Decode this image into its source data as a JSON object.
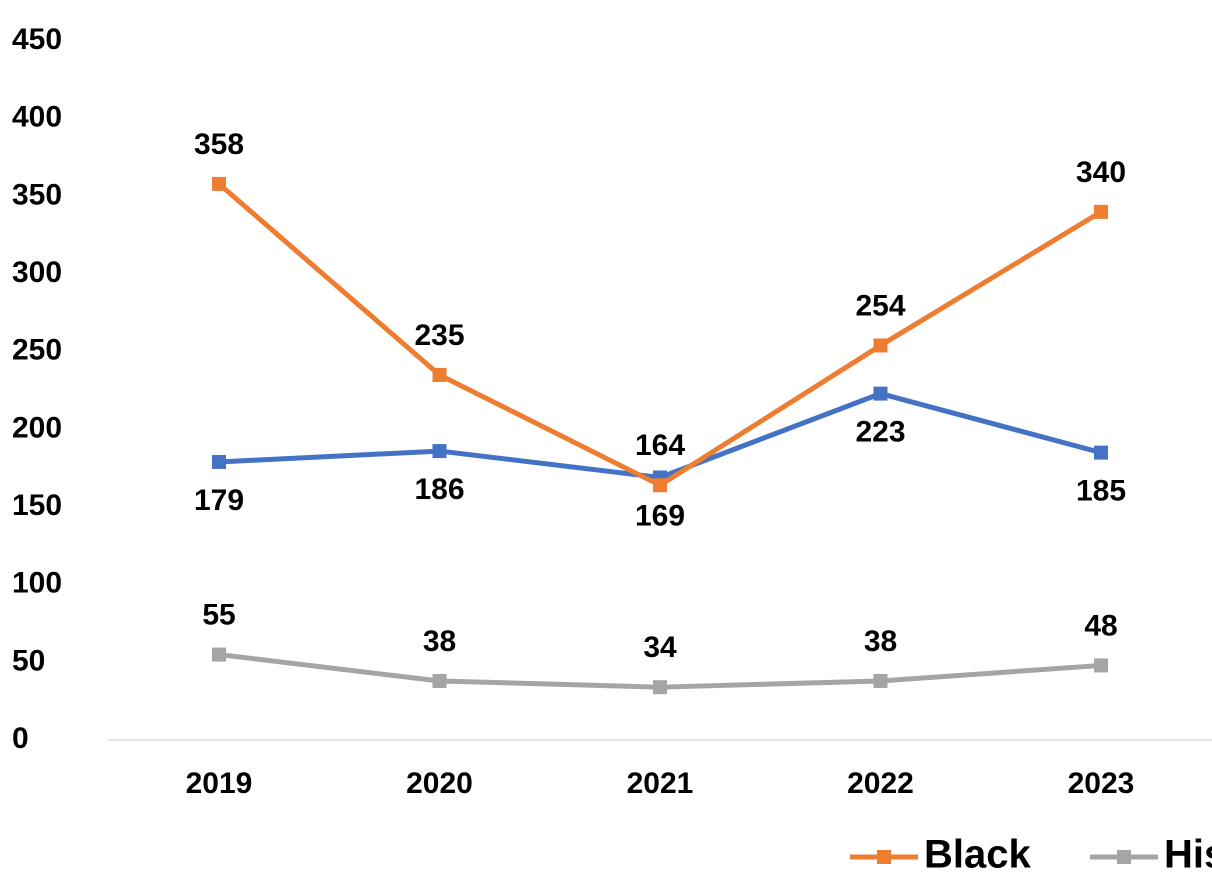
{
  "chart_data": {
    "type": "line",
    "categories": [
      "2019",
      "2020",
      "2021",
      "2022",
      "2023"
    ],
    "series": [
      {
        "color": "#4472c4",
        "values": [
          179,
          186,
          169,
          223,
          185
        ],
        "label_position": "below"
      },
      {
        "name": "Black",
        "color": "#ed7d31",
        "values": [
          358,
          235,
          164,
          254,
          340
        ],
        "label_position": "above"
      },
      {
        "name": "His",
        "color": "#a5a5a5",
        "values": [
          55,
          38,
          34,
          38,
          48
        ],
        "label_position": "above"
      }
    ],
    "ylim": [
      0,
      450
    ],
    "yticks": [
      0,
      50,
      100,
      150,
      200,
      250,
      300,
      350,
      400,
      450
    ],
    "grid": false,
    "legend": "bottom"
  }
}
